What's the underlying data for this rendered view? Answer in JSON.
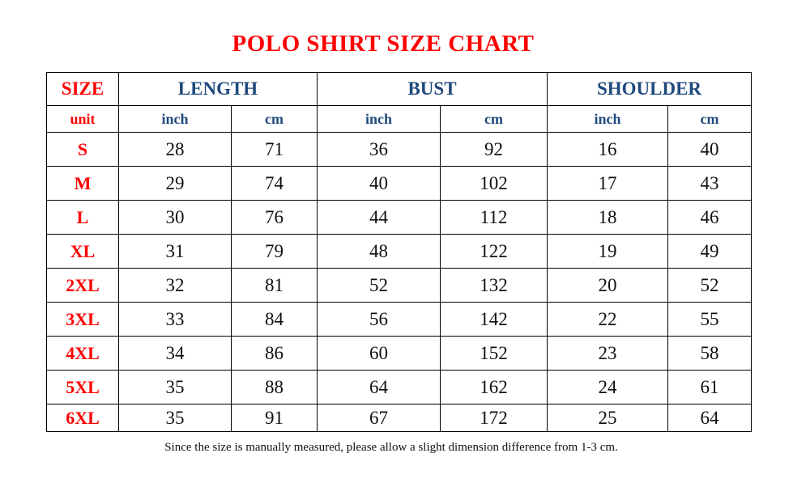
{
  "title": "POLO SHIRT SIZE CHART",
  "header": {
    "size": "SIZE",
    "groups": [
      "LENGTH",
      "BUST",
      "SHOULDER"
    ],
    "unit": "unit",
    "units": [
      "inch",
      "cm",
      "inch",
      "cm",
      "inch",
      "cm"
    ]
  },
  "rows": [
    {
      "size": "S",
      "values": [
        "28",
        "71",
        "36",
        "92",
        "16",
        "40"
      ]
    },
    {
      "size": "M",
      "values": [
        "29",
        "74",
        "40",
        "102",
        "17",
        "43"
      ]
    },
    {
      "size": "L",
      "values": [
        "30",
        "76",
        "44",
        "112",
        "18",
        "46"
      ]
    },
    {
      "size": "XL",
      "values": [
        "31",
        "79",
        "48",
        "122",
        "19",
        "49"
      ]
    },
    {
      "size": "2XL",
      "values": [
        "32",
        "81",
        "52",
        "132",
        "20",
        "52"
      ]
    },
    {
      "size": "3XL",
      "values": [
        "33",
        "84",
        "56",
        "142",
        "22",
        "55"
      ]
    },
    {
      "size": "4XL",
      "values": [
        "34",
        "86",
        "60",
        "152",
        "23",
        "58"
      ]
    },
    {
      "size": "5XL",
      "values": [
        "35",
        "88",
        "64",
        "162",
        "24",
        "61"
      ]
    },
    {
      "size": "6XL",
      "values": [
        "35",
        "91",
        "67",
        "172",
        "25",
        "64"
      ]
    }
  ],
  "note": "Since the size is manually measured, please allow a slight dimension difference from 1-3 cm.",
  "colors": {
    "title": "#ff0000",
    "header": "#1f497d"
  }
}
